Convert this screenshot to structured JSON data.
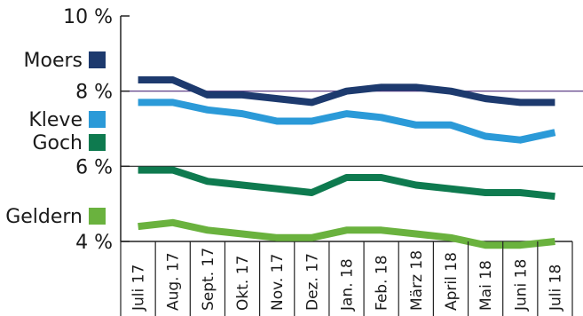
{
  "chart_data": {
    "type": "line",
    "title": "",
    "xlabel": "",
    "ylabel": "",
    "ylim": [
      4,
      10
    ],
    "y_ticks": [
      {
        "value": 4,
        "label": "4 %"
      },
      {
        "value": 6,
        "label": "6 %"
      },
      {
        "value": 8,
        "label": "8 %"
      },
      {
        "value": 10,
        "label": "10 %"
      }
    ],
    "categories": [
      "Juli 17",
      "Aug. 17",
      "Sept. 17",
      "Okt. 17",
      "Nov. 17",
      "Dez. 17",
      "Jan. 18",
      "Feb. 18",
      "März 18",
      "April 18",
      "Mai 18",
      "Juni 18",
      "Juli 18"
    ],
    "legend_position": "left",
    "grid": "horizontal lines at 6 % and 8 %",
    "series": [
      {
        "name": "Moers",
        "color": "#1d3a6e",
        "values": [
          8.3,
          8.3,
          7.9,
          7.9,
          7.8,
          7.7,
          8.0,
          8.1,
          8.1,
          8.0,
          7.8,
          7.7,
          7.7
        ]
      },
      {
        "name": "Kleve",
        "color": "#2b9ad8",
        "values": [
          7.7,
          7.7,
          7.5,
          7.4,
          7.2,
          7.2,
          7.4,
          7.3,
          7.1,
          7.1,
          6.8,
          6.7,
          6.9
        ]
      },
      {
        "name": "Goch",
        "color": "#0e7a4f",
        "values": [
          5.9,
          5.9,
          5.6,
          5.5,
          5.4,
          5.3,
          5.7,
          5.7,
          5.5,
          5.4,
          5.3,
          5.3,
          5.2
        ]
      },
      {
        "name": "Geldern",
        "color": "#6ab23e",
        "values": [
          4.4,
          4.5,
          4.3,
          4.2,
          4.1,
          4.1,
          4.3,
          4.3,
          4.2,
          4.1,
          3.9,
          3.9,
          4.0
        ]
      }
    ]
  }
}
